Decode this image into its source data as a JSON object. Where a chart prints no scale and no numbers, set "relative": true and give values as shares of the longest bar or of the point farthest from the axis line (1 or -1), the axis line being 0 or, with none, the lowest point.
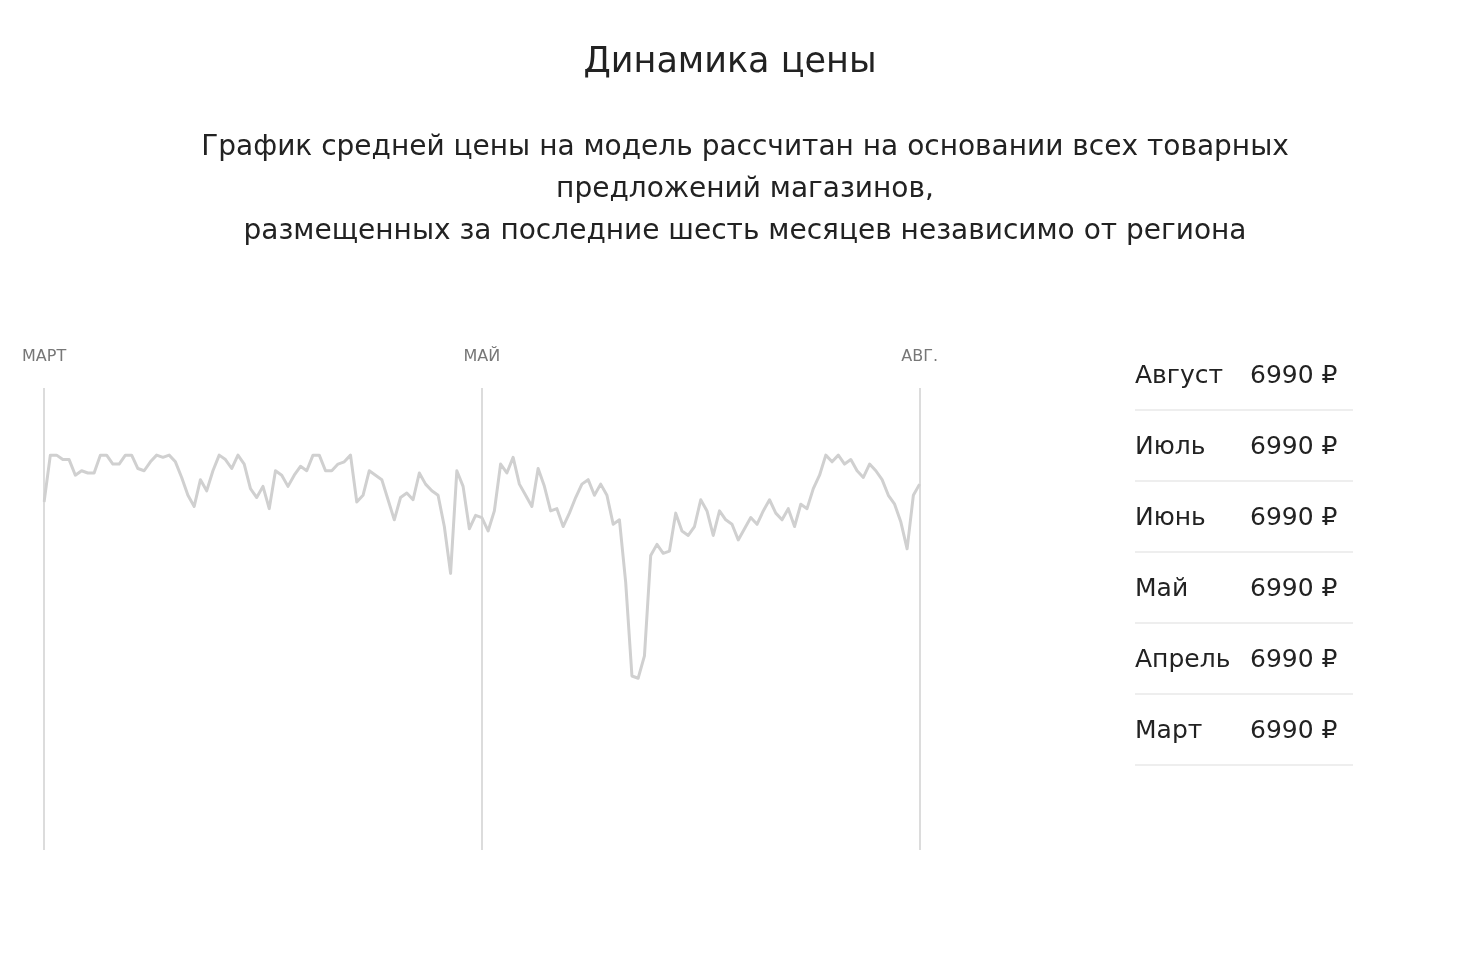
{
  "chart_data": [
    {
      "type": "line",
      "title": "Динамика цены",
      "subtitle": "График средней цены на модель рассчитан на основании всех товарных\nпредложений магазинов,\nразмещенных за последние шесть месяцев независимо от региона",
      "relative": true,
      "color": "#d0d0d0",
      "marker": "none",
      "grid": "x",
      "legend": false,
      "categories": [
        "МАРТ",
        null,
        null,
        null,
        null,
        null,
        null,
        null,
        null,
        null,
        null,
        null,
        null,
        null,
        null,
        null,
        null,
        null,
        null,
        null,
        null,
        null,
        null,
        null,
        null,
        null,
        null,
        null,
        null,
        null,
        null,
        null,
        null,
        null,
        null,
        null,
        null,
        null,
        null,
        null,
        null,
        null,
        null,
        null,
        null,
        null,
        null,
        null,
        null,
        null,
        null,
        null,
        null,
        null,
        null,
        null,
        null,
        null,
        null,
        null,
        null,
        null,
        null,
        null,
        null,
        null,
        null,
        null,
        null,
        null,
        "МАЙ",
        null,
        null,
        null,
        null,
        null,
        null,
        null,
        null,
        null,
        null,
        null,
        null,
        null,
        null,
        null,
        null,
        null,
        null,
        null,
        null,
        null,
        null,
        null,
        null,
        null,
        null,
        null,
        null,
        null,
        null,
        null,
        null,
        null,
        null,
        null,
        null,
        null,
        null,
        null,
        null,
        null,
        null,
        null,
        null,
        null,
        null,
        null,
        null,
        null,
        null,
        null,
        null,
        null,
        null,
        null,
        null,
        null,
        null,
        null,
        null,
        null,
        null,
        null,
        null,
        null,
        null,
        null,
        null,
        null,
        "АВГ."
      ],
      "values": [
        0.79,
        1,
        1,
        0.98,
        0.98,
        0.91,
        0.93,
        0.92,
        0.92,
        1,
        1,
        0.96,
        0.96,
        1,
        1,
        0.94,
        0.93,
        0.97,
        1,
        0.99,
        1,
        0.97,
        0.9,
        0.82,
        0.77,
        0.89,
        0.84,
        0.93,
        1,
        0.98,
        0.94,
        1,
        0.96,
        0.85,
        0.81,
        0.86,
        0.76,
        0.93,
        0.91,
        0.86,
        0.91,
        0.95,
        0.93,
        1,
        1,
        0.93,
        0.93,
        0.96,
        0.97,
        1,
        0.79,
        0.82,
        0.93,
        0.91,
        0.89,
        0.8,
        0.71,
        0.81,
        0.83,
        0.8,
        0.92,
        0.87,
        0.84,
        0.82,
        0.68,
        0.47,
        0.93,
        0.86,
        0.67,
        0.73,
        0.72,
        0.66,
        0.75,
        0.96,
        0.92,
        0.99,
        0.87,
        0.82,
        0.77,
        0.94,
        0.86,
        0.75,
        0.76,
        0.68,
        0.74,
        0.81,
        0.87,
        0.89,
        0.82,
        0.87,
        0.82,
        0.69,
        0.71,
        0.43,
        0.01,
        0,
        0.1,
        0.55,
        0.6,
        0.56,
        0.57,
        0.74,
        0.66,
        0.64,
        0.68,
        0.8,
        0.75,
        0.64,
        0.75,
        0.71,
        0.69,
        0.62,
        0.67,
        0.72,
        0.69,
        0.75,
        0.8,
        0.74,
        0.71,
        0.76,
        0.68,
        0.78,
        0.76,
        0.85,
        0.91,
        1,
        0.97,
        1,
        0.96,
        0.98,
        0.93,
        0.9,
        0.96,
        0.93,
        0.89,
        0.82,
        0.78,
        0.7,
        0.58,
        0.82,
        0.87
      ]
    },
    {
      "type": "other",
      "categories": [
        "Август",
        "Июль",
        "Июнь",
        "Май",
        "Апрель",
        "Март"
      ],
      "value_labels": [
        "6990 ₽",
        "6990 ₽",
        "6990 ₽",
        "6990 ₽",
        "6990 ₽",
        "6990 ₽"
      ]
    }
  ]
}
